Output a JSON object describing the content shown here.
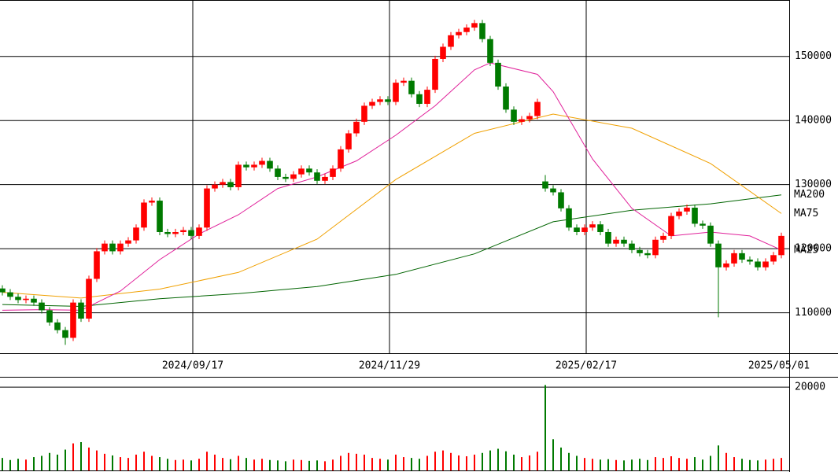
{
  "chart_data": [
    {
      "type": "candlestick",
      "up_color": "#ff0000",
      "down_color": "#007a00",
      "grid": true,
      "xlim": [
        -0.3,
        100
      ],
      "xticks": [
        {
          "value": 24.2,
          "label": "2024/09/17"
        },
        {
          "value": 49.2,
          "label": "2024/11/29"
        },
        {
          "value": 74.2,
          "label": "2025/02/17"
        },
        {
          "value": 98.7,
          "label": "2025/05/01"
        }
      ],
      "ylim": [
        103700,
        158800
      ],
      "yticks": [
        110000,
        120000,
        130000,
        140000,
        150000
      ],
      "open": [
        113800,
        113200,
        112500,
        112000,
        112200,
        111600,
        110400,
        108500,
        107300,
        106100,
        111600,
        109100,
        115300,
        119600,
        120800,
        119600,
        120800,
        121300,
        123300,
        127200,
        127500,
        122600,
        122300,
        122600,
        122900,
        122000,
        123300,
        129400,
        130000,
        130400,
        129600,
        133100,
        132700,
        133100,
        133700,
        132500,
        131200,
        130900,
        131600,
        132500,
        131900,
        130600,
        131200,
        132500,
        135500,
        138000,
        139800,
        142300,
        142900,
        143300,
        142900,
        145900,
        146200,
        144100,
        142600,
        144800,
        149600,
        151500,
        153300,
        153800,
        154500,
        155200,
        152700,
        149000,
        145300,
        141700,
        139800,
        140200,
        140700,
        130500,
        129400,
        128800,
        126300,
        123300,
        122600,
        123300,
        123800,
        122600,
        120800,
        121400,
        120800,
        119800,
        119300,
        119000,
        121400,
        122000,
        125100,
        125800,
        126400,
        123900,
        123600,
        120800,
        117100,
        117700,
        119300,
        118300,
        118000,
        117100,
        118000,
        119000
      ],
      "high": [
        114300,
        113700,
        113000,
        112700,
        112700,
        112100,
        110900,
        109000,
        107800,
        112100,
        112100,
        115800,
        120100,
        121300,
        121300,
        121300,
        121800,
        123800,
        127700,
        128000,
        128000,
        123100,
        123100,
        123400,
        123400,
        123800,
        129900,
        130500,
        130900,
        130900,
        133600,
        133600,
        133600,
        134200,
        134200,
        133000,
        131700,
        132100,
        133000,
        133000,
        132400,
        131700,
        133000,
        136000,
        138500,
        140300,
        142800,
        143400,
        143800,
        143800,
        146400,
        146700,
        146700,
        144600,
        145300,
        150100,
        152000,
        153800,
        154300,
        155000,
        155700,
        155700,
        153200,
        149500,
        145800,
        142200,
        140700,
        141200,
        143400,
        131500,
        129900,
        129300,
        126800,
        123800,
        123800,
        124300,
        124300,
        123100,
        121900,
        121900,
        121300,
        120300,
        119800,
        121900,
        122500,
        125600,
        126300,
        126900,
        126900,
        124400,
        124100,
        121300,
        118200,
        119800,
        119800,
        118800,
        118500,
        118500,
        119500,
        122500
      ],
      "low": [
        112700,
        112000,
        111500,
        111500,
        111100,
        109900,
        108000,
        106800,
        105000,
        105600,
        108600,
        108600,
        114800,
        119100,
        119100,
        119100,
        120300,
        120800,
        122800,
        126700,
        122100,
        121800,
        121800,
        122100,
        121500,
        121500,
        122800,
        128900,
        129500,
        129100,
        129100,
        132200,
        132200,
        132600,
        132000,
        130700,
        130400,
        130400,
        131100,
        131400,
        130100,
        130100,
        130700,
        132000,
        135000,
        137500,
        139300,
        141800,
        142400,
        142400,
        142400,
        145400,
        143600,
        142100,
        142100,
        144300,
        149100,
        151000,
        152800,
        153300,
        154000,
        152200,
        148500,
        144800,
        141200,
        139300,
        139300,
        139700,
        140200,
        128900,
        128300,
        125800,
        122800,
        122100,
        122100,
        122800,
        122100,
        120300,
        120300,
        120300,
        119300,
        118800,
        118500,
        118500,
        120900,
        121500,
        124600,
        125300,
        123400,
        123100,
        120300,
        109300,
        116600,
        117200,
        117800,
        117500,
        116600,
        116600,
        117500,
        118500
      ],
      "close": [
        113200,
        112500,
        112000,
        112200,
        111600,
        110400,
        108500,
        107300,
        106100,
        111600,
        109100,
        115300,
        119600,
        120800,
        119600,
        120800,
        121300,
        123300,
        127200,
        127500,
        122600,
        122300,
        122600,
        122900,
        122000,
        123300,
        129400,
        130000,
        130400,
        129600,
        133100,
        132700,
        133100,
        133700,
        132500,
        131200,
        130900,
        131600,
        132500,
        131900,
        130600,
        131200,
        132500,
        135500,
        138000,
        139800,
        142300,
        142900,
        143300,
        142900,
        145900,
        146200,
        144100,
        142600,
        144800,
        149600,
        151500,
        153300,
        153800,
        154500,
        155200,
        152700,
        149000,
        145300,
        141700,
        139800,
        140200,
        140700,
        142900,
        129400,
        128800,
        126300,
        123300,
        122600,
        123300,
        123800,
        122600,
        120800,
        121400,
        120800,
        119800,
        119300,
        119000,
        121400,
        122000,
        125100,
        125800,
        126400,
        123900,
        123600,
        120800,
        117100,
        117700,
        119300,
        118300,
        118000,
        117100,
        118000,
        119000,
        122000
      ],
      "series": [
        {
          "name": "MA200",
          "color": "#006400",
          "x": [
            0,
            10,
            20,
            30,
            40,
            50,
            60,
            70,
            80,
            90,
            99
          ],
          "values": [
            111300,
            111000,
            112200,
            113000,
            114100,
            116000,
            119200,
            124200,
            126000,
            127000,
            128400
          ]
        },
        {
          "name": "MA75",
          "color": "#f0a000",
          "x": [
            0,
            10,
            20,
            30,
            40,
            50,
            60,
            70,
            80,
            90,
            99
          ],
          "values": [
            113200,
            112300,
            113700,
            116300,
            121500,
            130800,
            138000,
            141000,
            138800,
            133300,
            125500
          ]
        },
        {
          "name": "MA25",
          "color": "#e0209a",
          "x": [
            0,
            5,
            10,
            15,
            20,
            25,
            30,
            35,
            40,
            45,
            50,
            55,
            60,
            62,
            68,
            70,
            75,
            80,
            85,
            90,
            95,
            99
          ],
          "values": [
            110400,
            110500,
            110400,
            113400,
            118300,
            122300,
            125300,
            129400,
            131200,
            133700,
            137700,
            142300,
            147900,
            149000,
            147200,
            144500,
            134000,
            126300,
            122000,
            122600,
            122000,
            119800
          ]
        }
      ]
    },
    {
      "type": "bar",
      "ylim": [
        0,
        22300
      ],
      "yticks": [
        20000
      ],
      "values": [
        3000,
        2500,
        2800,
        2600,
        3200,
        3500,
        4200,
        3800,
        5000,
        6500,
        6800,
        5500,
        4800,
        4000,
        3600,
        3200,
        3000,
        3800,
        4500,
        3500,
        3200,
        2800,
        2500,
        2600,
        2400,
        2800,
        4500,
        3800,
        3000,
        2700,
        3500,
        3000,
        2600,
        2800,
        2500,
        2400,
        2200,
        2600,
        2500,
        2300,
        2400,
        2200,
        2600,
        3500,
        4200,
        4000,
        3800,
        3000,
        2800,
        2600,
        3800,
        3200,
        3000,
        2800,
        3500,
        4500,
        4800,
        4200,
        3600,
        3400,
        3800,
        4200,
        4800,
        5200,
        4600,
        3800,
        3200,
        3600,
        4500,
        20500,
        7500,
        5500,
        4200,
        3500,
        3000,
        2800,
        2600,
        2700,
        2500,
        2400,
        2600,
        2800,
        2500,
        3200,
        3000,
        3400,
        3000,
        2800,
        3200,
        2600,
        3500,
        6000,
        4200,
        3200,
        2800,
        2500,
        2400,
        2600,
        2800,
        3000
      ]
    }
  ]
}
